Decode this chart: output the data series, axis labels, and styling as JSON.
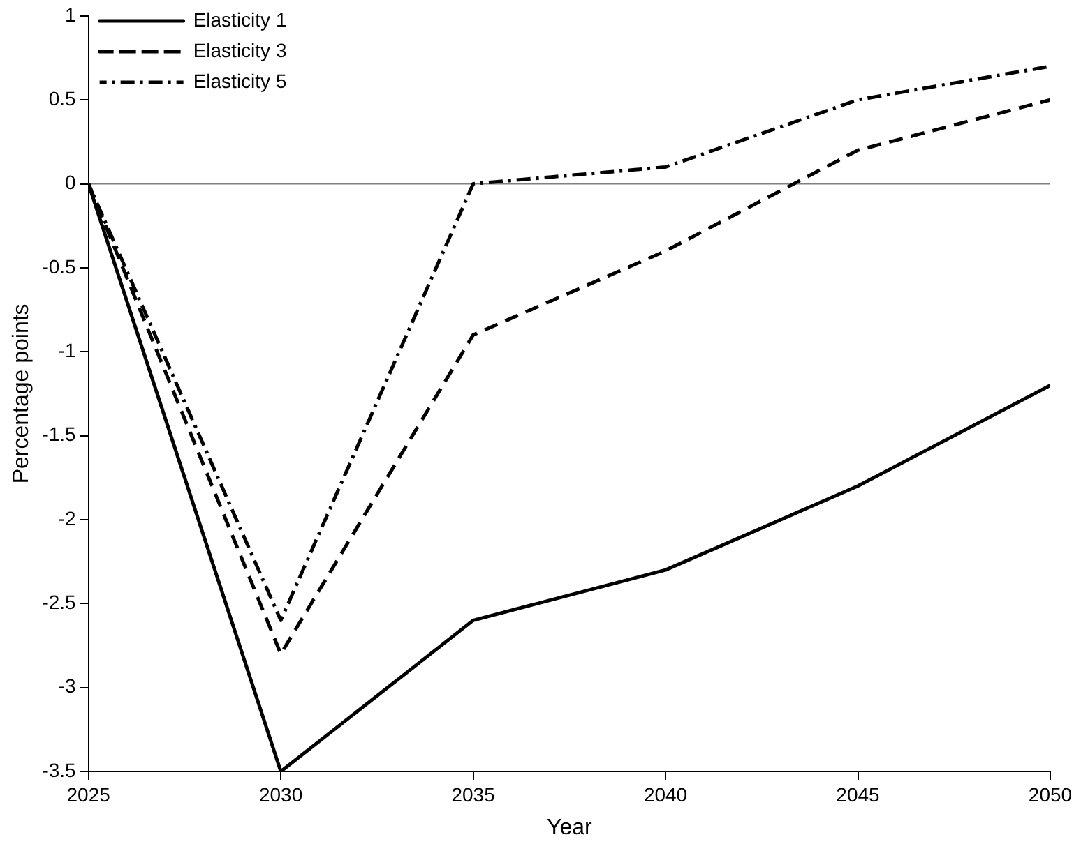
{
  "chart_data": {
    "type": "line",
    "xlabel": "Year",
    "ylabel": "Percentage points",
    "x": [
      2025,
      2030,
      2035,
      2040,
      2045,
      2050
    ],
    "series": [
      {
        "name": "Elasticity 1",
        "color": "#000000",
        "line_style": "solid",
        "values": [
          0,
          -3.5,
          -2.6,
          -2.3,
          -1.8,
          -1.2
        ]
      },
      {
        "name": "Elasticity 3",
        "color": "#000000",
        "line_style": "dashed",
        "values": [
          0,
          -2.8,
          -0.9,
          -0.4,
          0.2,
          0.5
        ]
      },
      {
        "name": "Elasticity 5",
        "color": "#000000",
        "line_style": "dashdot",
        "values": [
          0,
          -2.6,
          0,
          0.1,
          0.5,
          0.7
        ]
      }
    ],
    "xlim": [
      2025,
      2050
    ],
    "xticks": [
      2025,
      2030,
      2035,
      2040,
      2045,
      2050
    ],
    "ylim": [
      -3.5,
      1
    ],
    "yticks": [
      -3.5,
      -3,
      -2.5,
      -2,
      -1.5,
      -1,
      -0.5,
      0,
      0.5,
      1
    ],
    "ref_lines": [
      {
        "axis": "y",
        "value": 0,
        "color": "#808080"
      }
    ],
    "grid": false,
    "legend": "top left",
    "marker": "none"
  }
}
